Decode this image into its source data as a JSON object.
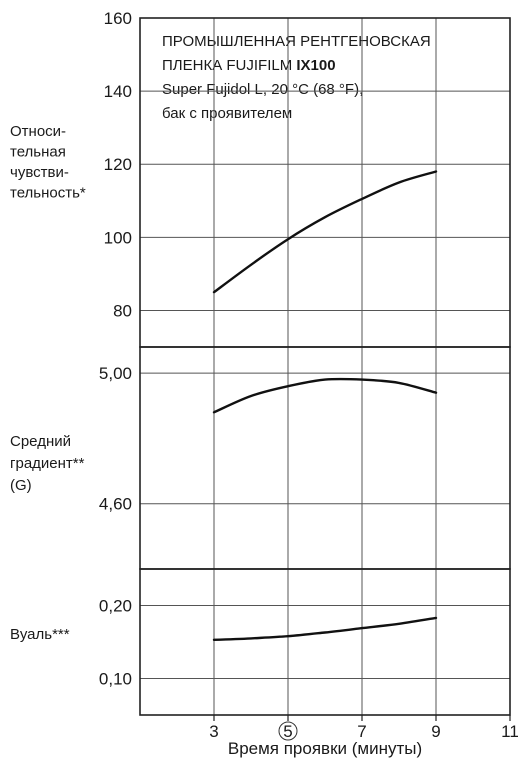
{
  "chart_data": {
    "type": "line",
    "xlabel": "Время проявки (минуты)",
    "x_ticks": [
      "3",
      "5",
      "7",
      "9",
      "11"
    ],
    "x_circled_tick": "5",
    "xlim": [
      1,
      11
    ],
    "title": {
      "line1": "ПРОМЫШЛЕННАЯ РЕНТГЕНОВСКАЯ",
      "line2_prefix": "ПЛЕНКА FUJIFILM ",
      "line2_bold": "IX100",
      "line3": "Super Fujidol L, 20 °C (68 °F),",
      "line4": "бак с проявителем"
    },
    "panels": [
      {
        "ylabel_lines": [
          "Относи-",
          "тельная",
          "чувстви-",
          "тельность*"
        ],
        "yticks": [
          "80",
          "100",
          "120",
          "140",
          "160"
        ],
        "ylim": [
          70,
          160
        ],
        "series": [
          {
            "x": [
              3,
              4,
              5,
              6,
              7,
              8,
              9
            ],
            "y": [
              85,
              92.5,
              99.5,
              105.5,
              110.5,
              115,
              118
            ]
          }
        ]
      },
      {
        "ylabel_lines": [
          "Средний",
          "градиент**",
          "(G)"
        ],
        "yticks": [
          "4,60",
          "5,00"
        ],
        "ylim": [
          4.4,
          5.08
        ],
        "series": [
          {
            "x": [
              3,
              4,
              5,
              6,
              7,
              8,
              9
            ],
            "y": [
              4.88,
              4.93,
              4.96,
              4.98,
              4.98,
              4.97,
              4.94
            ]
          }
        ]
      },
      {
        "ylabel_lines": [
          "Вуаль***"
        ],
        "yticks": [
          "0,10",
          "0,20"
        ],
        "ylim": [
          0.05,
          0.25
        ],
        "series": [
          {
            "x": [
              3,
              4,
              5,
              6,
              7,
              8,
              9
            ],
            "y": [
              0.153,
              0.155,
              0.158,
              0.163,
              0.169,
              0.175,
              0.183
            ]
          }
        ]
      }
    ]
  }
}
